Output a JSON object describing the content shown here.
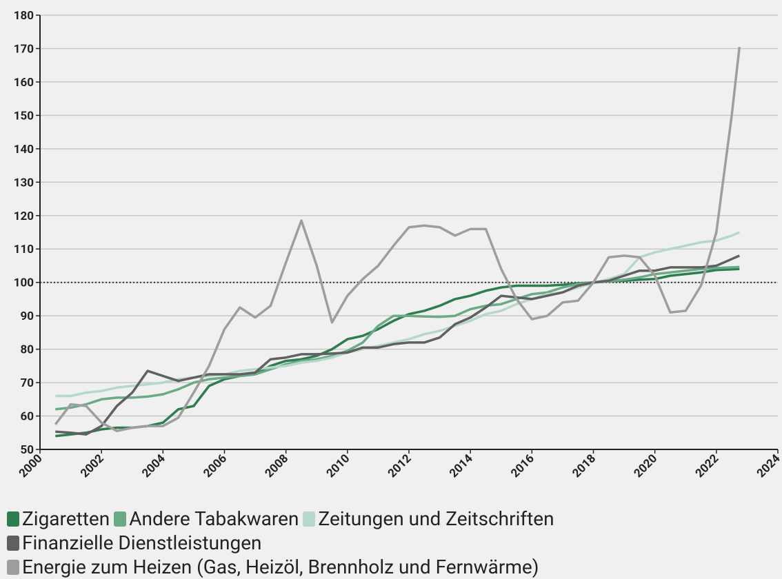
{
  "chart_data": {
    "type": "line",
    "x": [
      2000.5,
      2001,
      2001.5,
      2002,
      2002.5,
      2003,
      2003.5,
      2004,
      2004.5,
      2005,
      2005.5,
      2006,
      2006.5,
      2007,
      2007.5,
      2008,
      2008.5,
      2009,
      2009.5,
      2010,
      2010.5,
      2011,
      2011.5,
      2012,
      2012.5,
      2013,
      2013.5,
      2014,
      2014.5,
      2015,
      2015.5,
      2016,
      2016.5,
      2017,
      2017.5,
      2018,
      2018.5,
      2019,
      2019.5,
      2020,
      2020.5,
      2021,
      2021.5,
      2022,
      2022.5,
      2022.75
    ],
    "series": [
      {
        "name": "Zigaretten",
        "color": "#2e7d4f",
        "values": [
          54,
          54.5,
          55,
          56,
          56.5,
          56.5,
          57,
          58,
          62,
          63,
          69,
          71,
          72,
          72.5,
          75,
          76.5,
          77,
          78,
          80,
          83,
          84,
          86,
          88.5,
          90.5,
          91.5,
          93,
          95,
          96,
          97.5,
          98.5,
          99,
          99,
          99,
          99.3,
          99.7,
          100,
          100.3,
          100.5,
          100.8,
          101,
          102,
          102.5,
          103,
          103.7,
          103.9,
          104
        ]
      },
      {
        "name": "Andere Tabakwaren",
        "color": "#6aaa86",
        "values": [
          62,
          62.5,
          63.5,
          65,
          65.5,
          65.5,
          65.8,
          66.5,
          68,
          70,
          71,
          71.5,
          72,
          72.5,
          74,
          75.5,
          76.5,
          77,
          78,
          79.5,
          82,
          87,
          90,
          90,
          89.8,
          89.7,
          90,
          92,
          93,
          93.5,
          95,
          96.5,
          97,
          98.5,
          99.5,
          100,
          100.3,
          100.8,
          101.5,
          102.5,
          103,
          103.5,
          104,
          104.3,
          104.5,
          104.6
        ]
      },
      {
        "name": "Zeitungen und Zeitschriften",
        "color": "#b6d8c8",
        "values": [
          66,
          66,
          67,
          67.5,
          68.5,
          69,
          69.5,
          70,
          71,
          71.5,
          72,
          72.5,
          73.5,
          74,
          74.5,
          75,
          76,
          76.5,
          77.5,
          79,
          80,
          81,
          82,
          83,
          84.5,
          85.5,
          87,
          88.5,
          90.5,
          91.5,
          93.5,
          95,
          96.5,
          97,
          98.5,
          99.8,
          101,
          102.5,
          107.5,
          109,
          110,
          111,
          112,
          112.5,
          114,
          115
        ]
      },
      {
        "name": "Finanzielle Dienstleistungen",
        "color": "#606060",
        "values": [
          55.3,
          55,
          54.5,
          57,
          63,
          67,
          73.5,
          72,
          70.5,
          71.5,
          72.5,
          72.5,
          72.5,
          73,
          77,
          77.5,
          78.5,
          78.5,
          78.7,
          79,
          80.5,
          80.5,
          81.5,
          82,
          82,
          83.5,
          87.5,
          89.5,
          92.5,
          96,
          95.5,
          95,
          96,
          97,
          99,
          100,
          100.5,
          102,
          103.5,
          103.5,
          104.5,
          104.5,
          104.5,
          105,
          107,
          108
        ]
      },
      {
        "name": "Energie zum Heizen (Gas, Heizöl, Brennholz und Fernwärme)",
        "color": "#9e9e9e",
        "values": [
          57.5,
          63.5,
          63,
          58,
          55.5,
          56.5,
          57,
          57,
          59.5,
          67,
          75,
          86,
          92.5,
          89.5,
          93,
          106,
          118.5,
          105,
          88,
          96,
          101,
          105,
          111,
          116.5,
          117,
          116.5,
          114,
          116,
          116,
          104,
          95,
          89,
          90,
          94,
          94.5,
          100,
          107.5,
          108,
          107.5,
          102,
          91,
          91.5,
          99,
          115,
          150,
          170.5
        ]
      }
    ],
    "reference_line": 100,
    "xlim": [
      2000,
      2024
    ],
    "xticks": [
      2000,
      2002,
      2004,
      2006,
      2008,
      2010,
      2012,
      2014,
      2016,
      2018,
      2020,
      2022,
      2024
    ],
    "ylim": [
      50,
      180
    ],
    "yticks": [
      50,
      60,
      70,
      80,
      90,
      100,
      110,
      120,
      130,
      140,
      150,
      160,
      170,
      180
    ],
    "grid": true
  }
}
